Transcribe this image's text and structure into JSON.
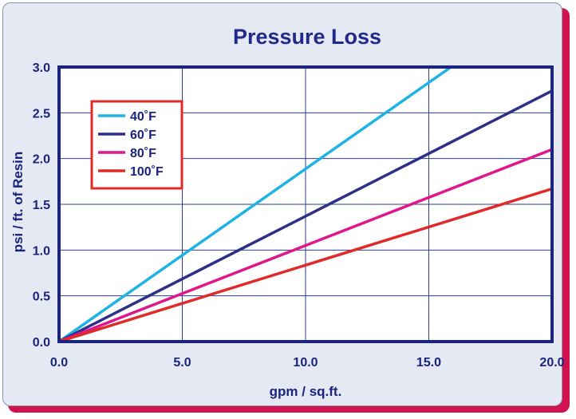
{
  "chart_data": {
    "type": "line",
    "title": "Pressure Loss",
    "xlabel": "gpm / sq.ft.",
    "ylabel": "psi / ft. of Resin",
    "xlim": [
      0,
      20
    ],
    "ylim": [
      0,
      3
    ],
    "xticks": [
      "0.0",
      "5.0",
      "10.0",
      "15.0",
      "20.0"
    ],
    "yticks": [
      "0.0",
      "0.5",
      "1.0",
      "1.5",
      "2.0",
      "2.5",
      "3.0"
    ],
    "grid": true,
    "legend_position": "top-left",
    "series": [
      {
        "name": "40˚F",
        "color": "#1fb3e5",
        "x": [
          0,
          15.9
        ],
        "y": [
          0,
          3.0
        ]
      },
      {
        "name": "60˚F",
        "color": "#2e2f86",
        "x": [
          0,
          20
        ],
        "y": [
          0,
          2.74
        ]
      },
      {
        "name": "80˚F",
        "color": "#e0168c",
        "x": [
          0,
          20
        ],
        "y": [
          0,
          2.1
        ]
      },
      {
        "name": "100˚F",
        "color": "#e02a2a",
        "x": [
          0,
          20
        ],
        "y": [
          0,
          1.67
        ]
      }
    ]
  },
  "colors": {
    "title": "#1f2a8c",
    "axis_text": "#1a237e",
    "plot_border": "#1b2580",
    "grid": "#2a3b8e",
    "legend_border": "#e02a2a",
    "card_bg": "#e4e9f3",
    "shadow": "#d1124f"
  }
}
